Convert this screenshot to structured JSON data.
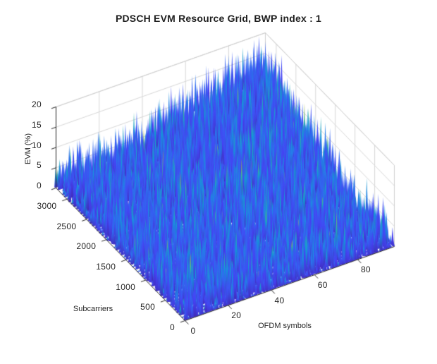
{
  "figure": {
    "background": "#ffffff"
  },
  "chart_data": {
    "type": "surface",
    "title": "PDSCH EVM Resource Grid, BWP index : 1",
    "xlabel": "OFDM symbols",
    "ylabel": "Subcarriers",
    "zlabel": "EVM (%)",
    "xlim": [
      0,
      97
    ],
    "ylim": [
      0,
      3276
    ],
    "zlim": [
      0,
      20
    ],
    "xticks": [
      0,
      20,
      40,
      60,
      80
    ],
    "yticks": [
      0,
      500,
      1000,
      1500,
      2000,
      2500,
      3000
    ],
    "zticks": [
      0,
      5,
      10,
      15,
      20
    ],
    "grid": true,
    "view": {
      "azimuth": -37.5,
      "elevation": 30
    },
    "legend": "none",
    "colormap": "parula",
    "colormap_stops": [
      [
        0.0,
        [
          62,
          38,
          168
        ]
      ],
      [
        0.1,
        [
          70,
          66,
          245
        ]
      ],
      [
        0.2,
        [
          49,
          104,
          242
        ]
      ],
      [
        0.3,
        [
          30,
          136,
          229
        ]
      ],
      [
        0.4,
        [
          14,
          157,
          209
        ]
      ],
      [
        0.5,
        [
          24,
          173,
          184
        ]
      ],
      [
        0.6,
        [
          60,
          185,
          153
        ]
      ],
      [
        0.7,
        [
          109,
          190,
          113
        ]
      ],
      [
        0.8,
        [
          166,
          188,
          73
        ]
      ],
      [
        0.9,
        [
          222,
          188,
          41
        ]
      ],
      [
        1.0,
        [
          249,
          251,
          14
        ]
      ]
    ],
    "axis_color": "#262626",
    "grid_color": "#d8d8d8",
    "box_edge_color": "#cfcfcf",
    "summary": "Dense noisy EVM surface over the full resource grid; EVM mostly 2-12% everywhere with a broad elevated region peaking near 16-18% toward the far corner (high OFDM symbol index, high subcarrier index). Colors follow the parula colormap: dominant royal blue with dark indigo troughs, cyan mid spikes and occasional green/yellow slivers.",
    "surface_model": {
      "seed": 1337,
      "nu": 168,
      "nv": 56,
      "base_level": 0.7,
      "coarse_noise_amp": 1.35,
      "spike_amp": 9.5,
      "spike_power": 2.1,
      "hump": {
        "u": 0.97,
        "v": 1.04,
        "su": 0.5,
        "sv": 0.48,
        "amp": 10.5
      },
      "color_base_min": 0.02,
      "color_tip_base": 0.12,
      "color_tip_spread": 0.4,
      "bright_fleck_chance": 0.022,
      "z_color_max": 1.0
    }
  }
}
